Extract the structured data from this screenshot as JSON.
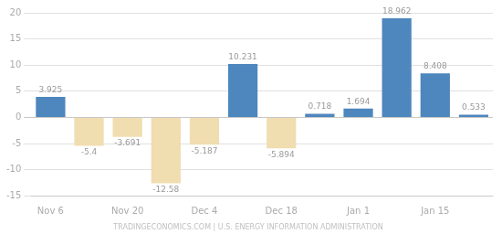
{
  "chart_data": {
    "type": "bar",
    "categories": [
      "Nov 6",
      null,
      "Nov 20",
      null,
      "Dec 4",
      null,
      "Dec 18",
      null,
      "Jan 1",
      null,
      "Jan 15",
      null
    ],
    "values": [
      3.925,
      -5.4,
      -3.691,
      -12.58,
      -5.187,
      10.231,
      -5.894,
      0.718,
      1.694,
      18.962,
      8.408,
      0.533
    ],
    "colors": [
      "#4e86be",
      "#f0ddb0",
      "#f0ddb0",
      "#f0ddb0",
      "#f0ddb0",
      "#4e86be",
      "#f0ddb0",
      "#4e86be",
      "#4e86be",
      "#4e86be",
      "#4e86be",
      "#4e86be"
    ],
    "ylim": [
      -15,
      20
    ],
    "yticks": [
      -15,
      -10,
      -5,
      0,
      5,
      10,
      15,
      20
    ],
    "grid": true,
    "data_labels": true,
    "annotations": [
      "TRADINGECONOMICS.COM | U.S. ENERGY INFORMATION ADMINISTRATION"
    ]
  }
}
